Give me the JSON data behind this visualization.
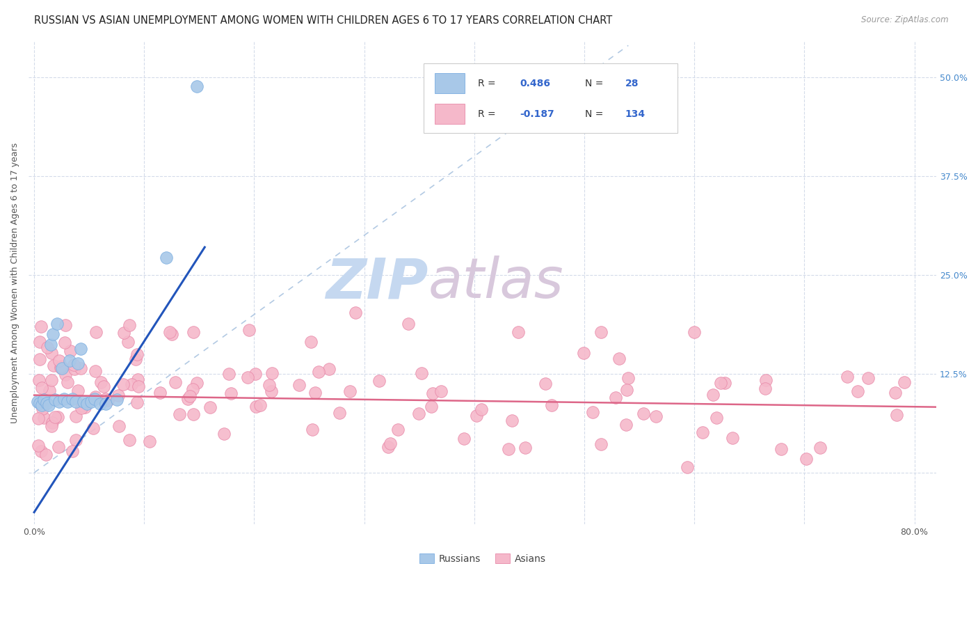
{
  "title": "RUSSIAN VS ASIAN UNEMPLOYMENT AMONG WOMEN WITH CHILDREN AGES 6 TO 17 YEARS CORRELATION CHART",
  "source": "Source: ZipAtlas.com",
  "xlim": [
    -0.005,
    0.82
  ],
  "ylim": [
    -0.065,
    0.545
  ],
  "ylabel": "Unemployment Among Women with Children Ages 6 to 17 years",
  "russian_color": "#a8c8e8",
  "russian_edge": "#7aade0",
  "asian_color": "#f5b8ca",
  "asian_edge": "#e888a8",
  "russian_line_color": "#2255bb",
  "asian_line_color": "#dd6688",
  "diag_line_color": "#aac4e0",
  "watermark_zip_color": "#c8d8ee",
  "watermark_atlas_color": "#d8c8d8",
  "background_color": "#ffffff",
  "grid_color": "#d0d8e8",
  "title_fontsize": 10.5,
  "axis_label_fontsize": 9,
  "tick_fontsize": 9,
  "legend_text_color_black": "#333333",
  "legend_text_color_blue": "#3366cc",
  "right_tick_color": "#4488cc"
}
